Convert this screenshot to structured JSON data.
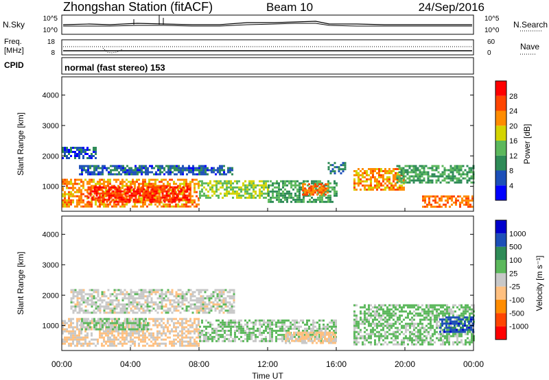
{
  "header": {
    "station": "Zhongshan Station (fitACF)",
    "beam": "Beam 10",
    "date": "24/Sep/2016"
  },
  "noise_panel": {
    "left_label": "N.Sky",
    "left_ticks": [
      "10^5",
      "10^0"
    ],
    "right_ticks": [
      "10^5",
      "10^0"
    ],
    "right_label": "N.Search"
  },
  "freq_panel": {
    "left_label_1": "Freq.",
    "left_label_2": "[MHz]",
    "left_ticks": [
      "18",
      "8"
    ],
    "right_ticks": [
      "60",
      "0"
    ],
    "right_label": "Nave"
  },
  "cpid": {
    "label": "CPID",
    "value": "normal (fast stereo) 153"
  },
  "colors": {
    "power": [
      "#0000ff",
      "#1c4fb8",
      "#2e8b57",
      "#5cb85c",
      "#d4d400",
      "#ff8c00",
      "#ff4500",
      "#ff0000"
    ],
    "velocity": [
      "#ff0000",
      "#ff4500",
      "#ff8c00",
      "#ffc080",
      "#c8c8c8",
      "#5cb85c",
      "#2e8b57",
      "#1c4fb8",
      "#0000cd"
    ]
  },
  "chart_data": [
    {
      "type": "heatmap",
      "name": "power",
      "ylabel": "Slant Range [km]",
      "yticks": [
        "1000",
        "2000",
        "3000",
        "4000"
      ],
      "ylim": [
        180,
        4600
      ],
      "xlim": [
        "00:00",
        "24:00"
      ],
      "colorbar": {
        "label": "Power [dB]",
        "ticks": [
          "4",
          "8",
          "12",
          "16",
          "20",
          "24",
          "28"
        ],
        "range": [
          0,
          32
        ]
      },
      "regions": [
        {
          "t0": 0.0,
          "t1": 8.0,
          "r0": 350,
          "r1": 1250,
          "v": 22
        },
        {
          "t0": 1.5,
          "t1": 7.5,
          "r0": 500,
          "r1": 1000,
          "v": 28
        },
        {
          "t0": 0.0,
          "t1": 2.0,
          "r0": 1900,
          "r1": 2300,
          "v": 6
        },
        {
          "t0": 1.0,
          "t1": 10.0,
          "r0": 1400,
          "r1": 1700,
          "v": 7
        },
        {
          "t0": 8.0,
          "t1": 12.0,
          "r0": 600,
          "r1": 1200,
          "v": 16
        },
        {
          "t0": 12.0,
          "t1": 16.0,
          "r0": 500,
          "r1": 1200,
          "v": 12
        },
        {
          "t0": 14.0,
          "t1": 15.5,
          "r0": 700,
          "r1": 1100,
          "v": 24
        },
        {
          "t0": 15.5,
          "t1": 16.5,
          "r0": 1400,
          "r1": 1800,
          "v": 8
        },
        {
          "t0": 17.0,
          "t1": 20.0,
          "r0": 900,
          "r1": 1600,
          "v": 22
        },
        {
          "t0": 19.5,
          "t1": 24.0,
          "r0": 1100,
          "r1": 1700,
          "v": 12
        },
        {
          "t0": 21.0,
          "t1": 24.0,
          "r0": 350,
          "r1": 700,
          "v": 24
        }
      ]
    },
    {
      "type": "heatmap",
      "name": "velocity",
      "xlabel": "Time UT",
      "ylabel": "Slant Range [km]",
      "yticks": [
        "1000",
        "2000",
        "3000",
        "4000"
      ],
      "ylim": [
        180,
        4600
      ],
      "xticks": [
        "00:00",
        "04:00",
        "08:00",
        "12:00",
        "16:00",
        "20:00",
        "00:00"
      ],
      "xlim": [
        "00:00",
        "24:00"
      ],
      "colorbar": {
        "label": "Velocity [m s⁻¹]",
        "ticks": [
          "-1000",
          "-500",
          "-100",
          "-25",
          "25",
          "100",
          "500",
          "1000"
        ],
        "range": [
          -1200,
          1200
        ]
      },
      "regions": [
        {
          "t0": 0.0,
          "t1": 8.0,
          "r0": 350,
          "r1": 1250,
          "v": -150
        },
        {
          "t0": 1.0,
          "t1": 5.0,
          "r0": 900,
          "r1": 1250,
          "v": 150
        },
        {
          "t0": 0.5,
          "t1": 10.0,
          "r0": 1400,
          "r1": 2200,
          "v": 0
        },
        {
          "t0": 8.0,
          "t1": 16.0,
          "r0": 500,
          "r1": 1200,
          "v": 150
        },
        {
          "t0": 13.0,
          "t1": 16.0,
          "r0": 400,
          "r1": 800,
          "v": -200
        },
        {
          "t0": 17.0,
          "t1": 24.0,
          "r0": 400,
          "r1": 1700,
          "v": 200
        },
        {
          "t0": 22.0,
          "t1": 24.0,
          "r0": 800,
          "r1": 1300,
          "v": 800
        }
      ]
    }
  ]
}
